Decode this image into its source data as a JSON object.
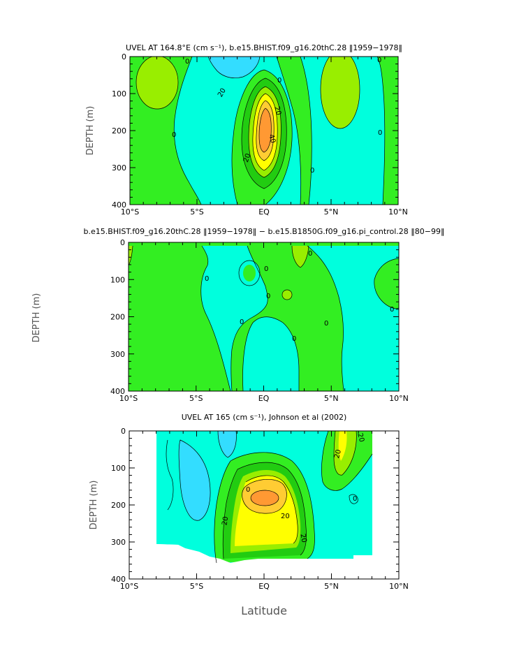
{
  "colors": {
    "blue_lt": "#33ddff",
    "cyan": "#00ffdd",
    "green": "#33ee22",
    "green_dk": "#22cc11",
    "lime": "#99ee00",
    "yellow": "#ffff00",
    "orange_lt": "#ffcc33",
    "orange": "#ff9933"
  },
  "chart_data": [
    {
      "type": "heatmap",
      "title": "UVEL AT 164.8°E (cm s⁻¹), b.e15.BHIST.f09_g16.20thC.28 ‖1959−1978‖",
      "xlabel": "",
      "ylabel": "DEPTH (m)",
      "xlim": [
        -10,
        10
      ],
      "ylim": [
        400,
        0
      ],
      "x_tick_labels": [
        "10°S",
        "5°S",
        "EQ",
        "5°N",
        "10°N"
      ],
      "y_tick_labels": [
        "0",
        "100",
        "200",
        "300",
        "400"
      ],
      "contour_labels": [
        "0",
        "20",
        "0",
        "20",
        "40",
        "20",
        "0",
        "0",
        "0",
        "0"
      ]
    },
    {
      "type": "heatmap",
      "title": "b.e15.BHIST.f09_g16.20thC.28 ‖1959−1978‖ − b.e15.B1850G.f09_g16.pi_control.28 ‖80−99‖",
      "xlabel": "",
      "ylabel": "DEPTH (m)",
      "xlim": [
        -10,
        10
      ],
      "ylim": [
        400,
        0
      ],
      "x_tick_labels": [
        "10°S",
        "5°S",
        "EQ",
        "5°N",
        "10°N"
      ],
      "y_tick_labels": [
        "0",
        "100",
        "200",
        "300",
        "400"
      ],
      "contour_labels": [
        "0",
        "0",
        "0",
        "0",
        "0",
        "0",
        "0",
        "0"
      ]
    },
    {
      "type": "heatmap",
      "title": "UVEL AT 165 (cm s⁻¹), Johnson et al (2002)",
      "xlabel": "Latitude",
      "ylabel": "DEPTH (m)",
      "xlim": [
        -10,
        10
      ],
      "ylim": [
        400,
        0
      ],
      "x_tick_labels": [
        "10°S",
        "5°S",
        "EQ",
        "5°N",
        "10°N"
      ],
      "y_tick_labels": [
        "0",
        "100",
        "200",
        "300",
        "400"
      ],
      "contour_labels": [
        "20",
        "20",
        "20",
        "20",
        "20",
        "0",
        "0"
      ]
    }
  ],
  "shared_ylabel": "DEPTH (m)",
  "main_xlabel": "Latitude"
}
